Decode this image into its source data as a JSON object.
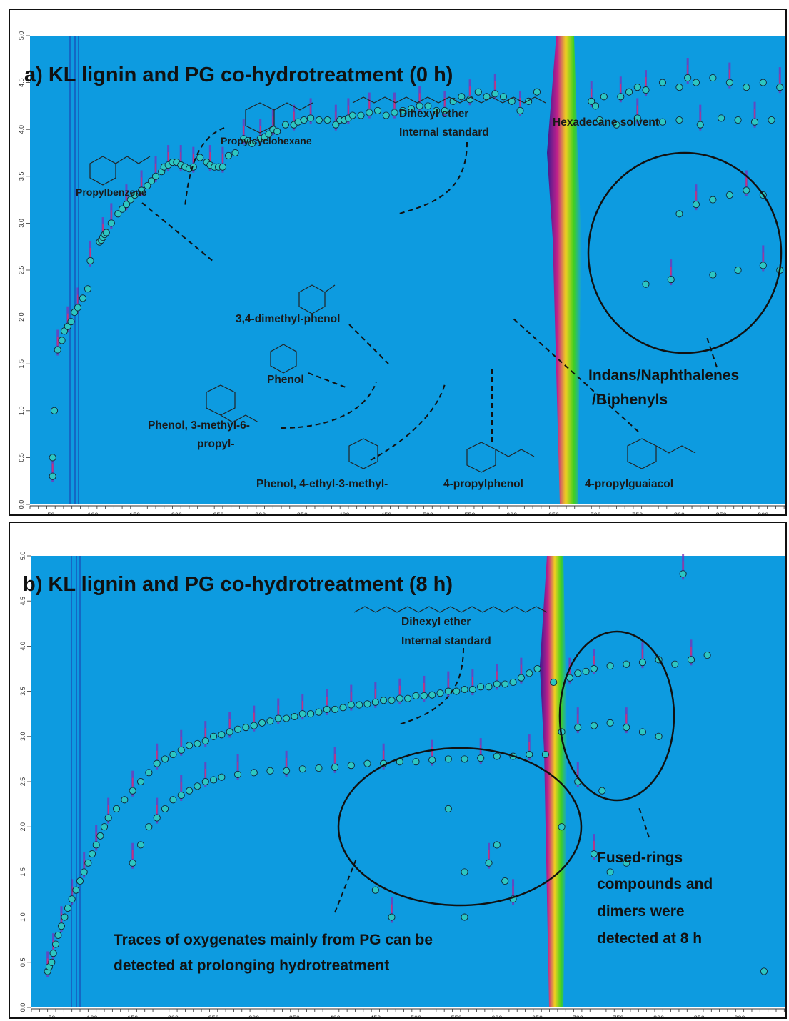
{
  "chart_data": [
    {
      "type": "scatter",
      "title": "a) KL lignin and PG co-hydrotreatment (0 h)",
      "x_ticks": [
        "50",
        "100",
        "150",
        "200",
        "250",
        "300",
        "350",
        "400",
        "450",
        "500",
        "550",
        "600",
        "650",
        "700",
        "750",
        "800",
        "850",
        "900"
      ],
      "y_ticks": [
        "0.0",
        "0.5",
        "1.0",
        "1.5",
        "2.0",
        "2.5",
        "3.0",
        "3.5",
        "4.0",
        "4.5",
        "5.0"
      ],
      "xlim": [
        25,
        930
      ],
      "ylim": [
        0,
        5
      ],
      "colors": {
        "background": "#0d9be0",
        "peak": "#7b2fb8",
        "marker": "#2cc6c2"
      },
      "solvent_band": {
        "label": "Hexadecane solvent",
        "x": [
          640,
          680
        ]
      },
      "annotations": [
        {
          "label": "Propylcyclohexane",
          "x": 200,
          "y": 3.78
        },
        {
          "label": "Propylbenzene",
          "x": 237,
          "y": 2.88
        },
        {
          "label": "Dihexyl ether",
          "x": 450,
          "y": 3.55
        },
        {
          "label": "Internal standard",
          "x": 450,
          "y": 3.55
        },
        {
          "label": "3,4-dimethyl-phenol",
          "x": 452,
          "y": 1.95
        },
        {
          "label": "Phenol",
          "x": 396,
          "y": 1.78
        },
        {
          "label": "Phenol, 3-methyl-6-",
          "x": 420,
          "y": 1.85
        },
        {
          "label": "propyl-",
          "x": 420,
          "y": 1.85
        },
        {
          "label": "Phenol, 4-ethyl-3-methyl-",
          "x": 513,
          "y": 1.9
        },
        {
          "label": "4-propylphenol",
          "x": 570,
          "y": 2.15
        },
        {
          "label": "4-propylguaiacol",
          "x": 592,
          "y": 2.55
        },
        {
          "label": "Indans/Naphthalenes",
          "x": 825,
          "y": 2.2
        },
        {
          "label": "/Biphenyls",
          "x": 825,
          "y": 2.2
        }
      ],
      "x": [
        52,
        52,
        54,
        58,
        63,
        66,
        70,
        74,
        78,
        82,
        88,
        94,
        97,
        108,
        110,
        112,
        114,
        116,
        122,
        130,
        135,
        140,
        145,
        150,
        158,
        165,
        170,
        175,
        182,
        185,
        190,
        195,
        200,
        205,
        210,
        215,
        220,
        228,
        236,
        240,
        245,
        250,
        255,
        262,
        270,
        280,
        285,
        290,
        300,
        305,
        310,
        315,
        320,
        330,
        340,
        345,
        352,
        360,
        370,
        380,
        390,
        395,
        400,
        405,
        410,
        420,
        430,
        440,
        450,
        460,
        470,
        480,
        490,
        500,
        510,
        520,
        530,
        540,
        550,
        560,
        570,
        580,
        590,
        600,
        610,
        620,
        630,
        695,
        700,
        710,
        730,
        740,
        750,
        760,
        780,
        800,
        810,
        820,
        840,
        860,
        880,
        900,
        920,
        705,
        725,
        750,
        780,
        800,
        825,
        850,
        870,
        890,
        910,
        800,
        820,
        840,
        860,
        880,
        900,
        760,
        790,
        840,
        870,
        900,
        920
      ],
      "y": [
        0.3,
        0.5,
        1.0,
        1.65,
        1.75,
        1.85,
        1.9,
        1.95,
        2.05,
        2.1,
        2.2,
        2.3,
        2.6,
        2.8,
        2.82,
        2.85,
        2.88,
        2.9,
        3.0,
        3.1,
        3.15,
        3.2,
        3.25,
        3.3,
        3.35,
        3.4,
        3.45,
        3.5,
        3.55,
        3.6,
        3.62,
        3.65,
        3.65,
        3.62,
        3.6,
        3.58,
        3.6,
        3.7,
        3.65,
        3.62,
        3.6,
        3.6,
        3.6,
        3.72,
        3.75,
        3.9,
        3.88,
        3.85,
        3.9,
        3.92,
        3.95,
        4.0,
        3.98,
        4.05,
        4.05,
        4.08,
        4.1,
        4.12,
        4.1,
        4.1,
        4.05,
        4.1,
        4.1,
        4.12,
        4.15,
        4.15,
        4.18,
        4.2,
        4.15,
        4.18,
        4.2,
        4.22,
        4.25,
        4.25,
        4.2,
        4.2,
        4.3,
        4.35,
        4.32,
        4.4,
        4.35,
        4.38,
        4.35,
        4.3,
        4.2,
        4.3,
        4.4,
        4.3,
        4.25,
        4.35,
        4.35,
        4.4,
        4.45,
        4.42,
        4.5,
        4.45,
        4.55,
        4.5,
        4.55,
        4.5,
        4.45,
        4.5,
        4.45,
        4.1,
        4.05,
        4.12,
        4.08,
        4.1,
        4.05,
        4.12,
        4.1,
        4.08,
        4.1,
        3.1,
        3.2,
        3.25,
        3.3,
        3.35,
        3.3,
        2.35,
        2.4,
        2.45,
        2.5,
        2.55,
        2.5
      ]
    },
    {
      "type": "scatter",
      "title": "b) KL lignin and PG co-hydrotreatment (8 h)",
      "x_ticks": [
        "50",
        "100",
        "150",
        "200",
        "250",
        "300",
        "350",
        "400",
        "450",
        "500",
        "550",
        "600",
        "650",
        "700",
        "750",
        "800",
        "850",
        "900"
      ],
      "y_ticks": [
        "0.0",
        "0.5",
        "1.0",
        "1.5",
        "2.0",
        "2.5",
        "3.0",
        "3.5",
        "4.0",
        "4.5",
        "5.0"
      ],
      "xlim": [
        25,
        960
      ],
      "ylim": [
        0,
        5
      ],
      "colors": {
        "background": "#0d9be0",
        "peak": "#7b2fb8",
        "marker": "#2cc6c2"
      },
      "solvent_band": {
        "label": "",
        "x": [
          650,
          690
        ]
      },
      "annotations": [
        {
          "label": "Dihexyl ether",
          "x": 450,
          "y": 3.5
        },
        {
          "label": "Internal standard",
          "x": 450,
          "y": 3.5
        },
        {
          "label": "Fused-rings",
          "x": 725,
          "y": 2.55
        },
        {
          "label": "compounds  and",
          "x": 725,
          "y": 2.55
        },
        {
          "label": "dimers were",
          "x": 725,
          "y": 2.55
        },
        {
          "label": "detected at 8 h",
          "x": 725,
          "y": 2.55
        },
        {
          "label": "Traces of oxygenates mainly from PG can be",
          "x": 440,
          "y": 1.85
        },
        {
          "label": "detected at prolonging  hydrotreatment",
          "x": 440,
          "y": 1.85
        }
      ],
      "x": [
        45,
        47,
        50,
        52,
        55,
        58,
        62,
        66,
        70,
        75,
        80,
        85,
        90,
        95,
        100,
        105,
        110,
        115,
        120,
        130,
        140,
        150,
        160,
        170,
        180,
        190,
        200,
        210,
        220,
        230,
        240,
        250,
        260,
        270,
        280,
        290,
        300,
        310,
        320,
        330,
        340,
        350,
        360,
        370,
        380,
        390,
        400,
        410,
        420,
        430,
        440,
        450,
        460,
        470,
        480,
        490,
        500,
        510,
        520,
        530,
        540,
        550,
        560,
        570,
        580,
        590,
        600,
        610,
        620,
        630,
        640,
        650,
        150,
        160,
        170,
        180,
        190,
        200,
        210,
        220,
        230,
        240,
        250,
        260,
        280,
        300,
        320,
        340,
        360,
        380,
        400,
        420,
        440,
        460,
        480,
        500,
        520,
        540,
        560,
        580,
        600,
        620,
        640,
        660,
        670,
        690,
        700,
        710,
        720,
        740,
        760,
        780,
        800,
        820,
        840,
        860,
        680,
        700,
        720,
        740,
        760,
        780,
        800,
        700,
        730,
        450,
        470,
        540,
        560,
        590,
        600,
        610,
        620,
        560,
        680,
        720,
        740,
        760,
        830,
        930
      ],
      "y": [
        0.4,
        0.45,
        0.5,
        0.6,
        0.7,
        0.8,
        0.9,
        1.0,
        1.1,
        1.2,
        1.3,
        1.4,
        1.5,
        1.6,
        1.7,
        1.8,
        1.9,
        2.0,
        2.1,
        2.2,
        2.3,
        2.4,
        2.5,
        2.6,
        2.7,
        2.75,
        2.8,
        2.85,
        2.9,
        2.92,
        2.95,
        3.0,
        3.02,
        3.05,
        3.08,
        3.1,
        3.12,
        3.15,
        3.17,
        3.2,
        3.2,
        3.22,
        3.25,
        3.25,
        3.27,
        3.3,
        3.3,
        3.32,
        3.35,
        3.35,
        3.36,
        3.38,
        3.4,
        3.4,
        3.42,
        3.42,
        3.45,
        3.45,
        3.46,
        3.48,
        3.5,
        3.5,
        3.52,
        3.52,
        3.55,
        3.55,
        3.58,
        3.58,
        3.6,
        3.65,
        3.7,
        3.75,
        1.6,
        1.8,
        2.0,
        2.1,
        2.2,
        2.3,
        2.35,
        2.4,
        2.45,
        2.5,
        2.52,
        2.55,
        2.58,
        2.6,
        2.62,
        2.62,
        2.64,
        2.65,
        2.66,
        2.68,
        2.7,
        2.7,
        2.72,
        2.72,
        2.74,
        2.75,
        2.75,
        2.76,
        2.78,
        2.78,
        2.8,
        2.8,
        3.6,
        3.65,
        3.7,
        3.72,
        3.75,
        3.78,
        3.8,
        3.82,
        3.85,
        3.8,
        3.85,
        3.9,
        3.05,
        3.1,
        3.12,
        3.15,
        3.1,
        3.05,
        3.0,
        2.5,
        2.4,
        1.3,
        1.0,
        2.2,
        1.5,
        1.6,
        1.8,
        1.4,
        1.2,
        1.0,
        2.0,
        1.7,
        1.5,
        1.6,
        4.8,
        0.4
      ]
    }
  ]
}
